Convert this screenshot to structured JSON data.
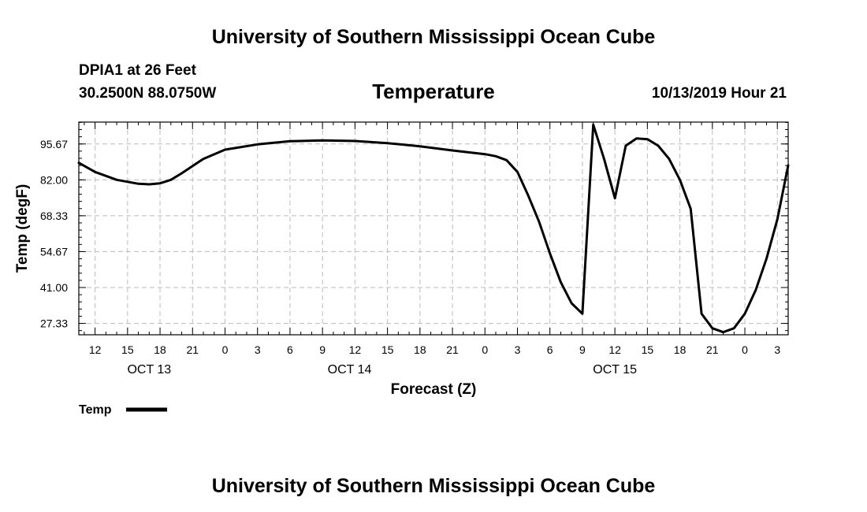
{
  "header": {
    "top_title": "University of Southern Mississippi Ocean Cube",
    "bottom_title": "University of Southern Mississippi Ocean Cube",
    "station": "DPIA1 at 26 Feet",
    "coords": "30.2500N 88.0750W",
    "datetime": "10/13/2019 Hour 21"
  },
  "legend": {
    "label": "Temp",
    "color": "#000000"
  },
  "chart_data": {
    "type": "line",
    "title": "Temperature",
    "xlabel": "Forecast (Z)",
    "ylabel": "Temp (degF)",
    "x_unit": "hours since OCT 13 00Z",
    "xlim": [
      10.5,
      76
    ],
    "ylim": [
      23,
      104
    ],
    "yticks": [
      27.33,
      41.0,
      54.67,
      68.33,
      82.0,
      95.67
    ],
    "ytick_labels": [
      "27.33",
      "41.00",
      "54.67",
      "68.33",
      "82.00",
      "95.67"
    ],
    "xticks": [
      12,
      15,
      18,
      21,
      24,
      27,
      30,
      33,
      36,
      39,
      42,
      45,
      48,
      51,
      54,
      57,
      60,
      63,
      66,
      69,
      72,
      75
    ],
    "xtick_labels": [
      "12",
      "15",
      "18",
      "21",
      "0",
      "3",
      "6",
      "9",
      "12",
      "15",
      "18",
      "21",
      "0",
      "3",
      "6",
      "9",
      "12",
      "15",
      "18",
      "21",
      "0",
      "3"
    ],
    "date_labels": [
      {
        "x": 17,
        "text": "OCT 13"
      },
      {
        "x": 35.5,
        "text": "OCT 14"
      },
      {
        "x": 60,
        "text": "OCT 15"
      }
    ],
    "grid": true,
    "series": [
      {
        "name": "Temp",
        "color": "#000000",
        "x": [
          10.5,
          12,
          14,
          16,
          17,
          18,
          19,
          20,
          22,
          24,
          27,
          30,
          33,
          36,
          39,
          42,
          45,
          48,
          49,
          50,
          51,
          52,
          53,
          54,
          55,
          56,
          57,
          58,
          59,
          60,
          61,
          62,
          63,
          64,
          65,
          66,
          67,
          68,
          69,
          70,
          71,
          72,
          73,
          74,
          75,
          76
        ],
        "y": [
          88.5,
          85.0,
          82.0,
          80.5,
          80.3,
          80.7,
          82.0,
          84.5,
          90.0,
          93.5,
          95.5,
          96.7,
          97.0,
          96.8,
          96.0,
          94.8,
          93.2,
          91.8,
          91.0,
          89.5,
          85.0,
          76.0,
          66.0,
          54.0,
          43.0,
          35.0,
          31.0,
          103.0,
          90.0,
          75.0,
          95.0,
          97.8,
          97.5,
          95.0,
          90.0,
          82.0,
          71.0,
          31.0,
          25.5,
          24.0,
          25.5,
          31.0,
          40.0,
          52.0,
          67.0,
          87.5
        ]
      }
    ]
  }
}
